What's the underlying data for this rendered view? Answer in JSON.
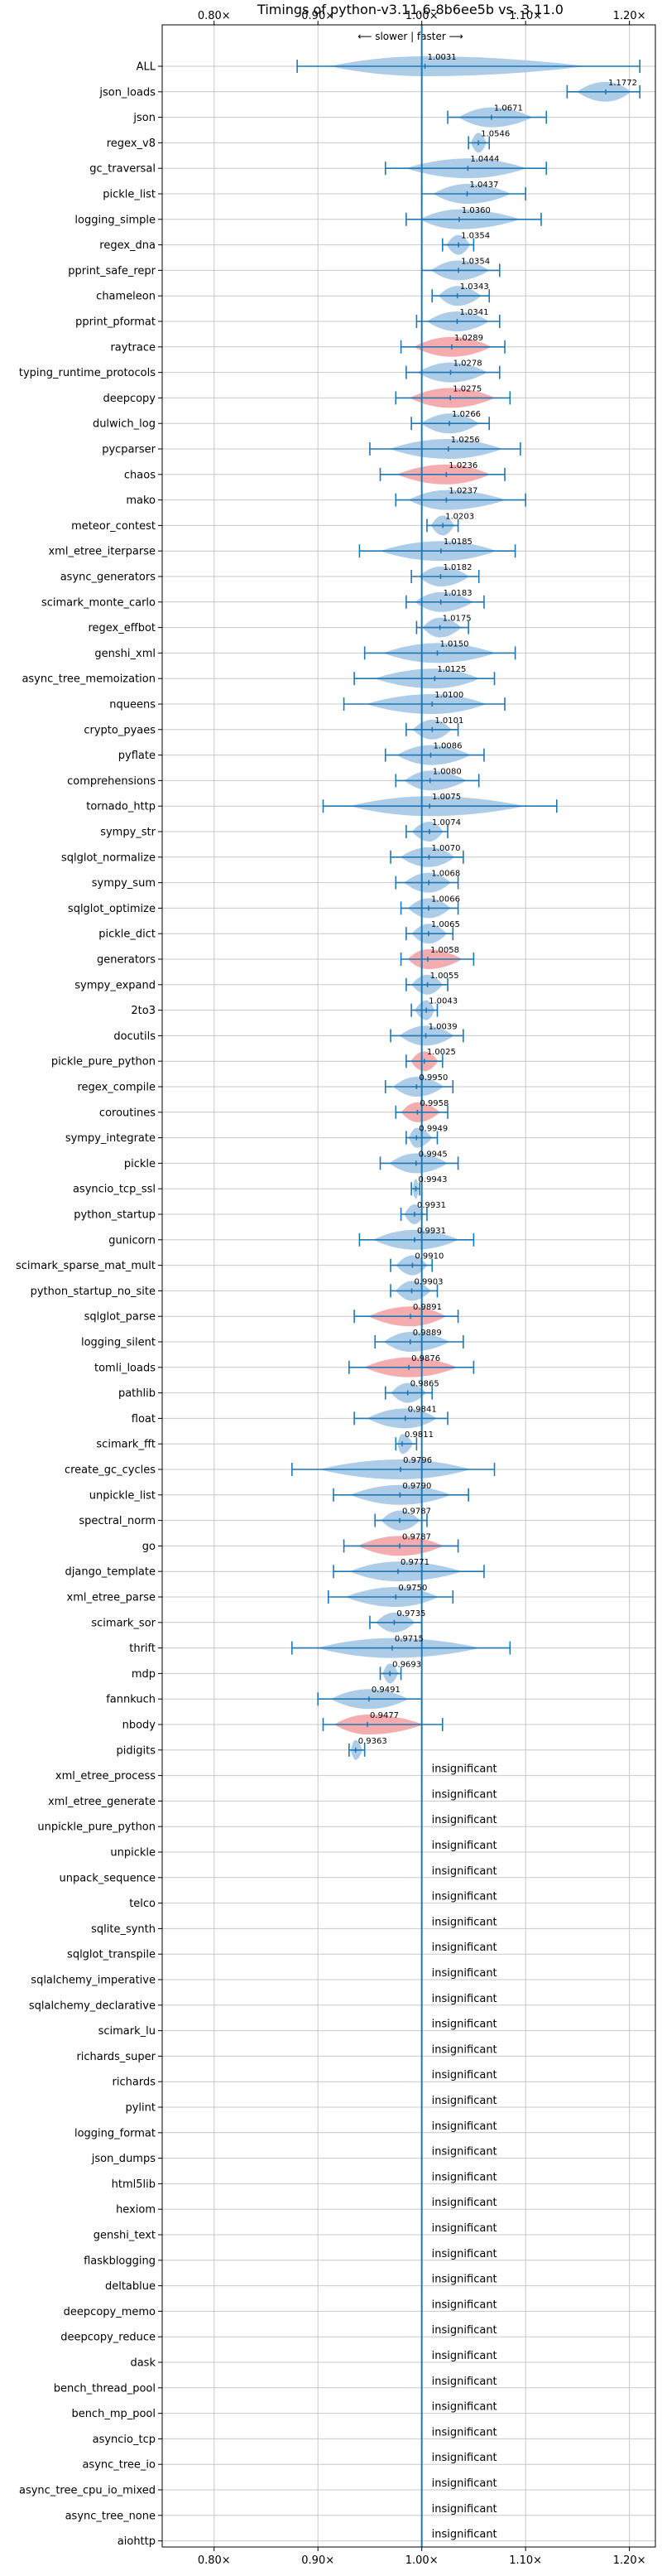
{
  "chart_data": {
    "type": "violin",
    "title": "Timings of python-v3.11.6-8b6ee5b vs. 3.11.0",
    "direction_label": "⟵ slower | faster ⟶",
    "xlim": [
      0.75,
      1.225
    ],
    "baseline": 1.0,
    "x_ticks": [
      0.8,
      0.9,
      1.0,
      1.1,
      1.2
    ],
    "x_tick_labels": [
      "0.80×",
      "0.90×",
      "1.00×",
      "1.10×",
      "1.20×"
    ],
    "grid": true,
    "colors": {
      "faster": "#a9c9e6",
      "slower": "#f4a8ab",
      "errorbar": "#1f77b4",
      "baseline": "#1f77b4",
      "grid": "#c8c8c8"
    },
    "insignificant_label": "insignificant",
    "benchmarks": [
      {
        "name": "ALL",
        "value": 1.0031,
        "low": 0.88,
        "high": 1.21,
        "color": "faster"
      },
      {
        "name": "json_loads",
        "value": 1.1772,
        "low": 1.14,
        "high": 1.21,
        "color": "faster"
      },
      {
        "name": "json",
        "value": 1.0671,
        "low": 1.025,
        "high": 1.12,
        "color": "faster"
      },
      {
        "name": "regex_v8",
        "value": 1.0546,
        "low": 1.045,
        "high": 1.065,
        "color": "faster"
      },
      {
        "name": "gc_traversal",
        "value": 1.0444,
        "low": 0.965,
        "high": 1.12,
        "color": "faster"
      },
      {
        "name": "pickle_list",
        "value": 1.0437,
        "low": 1.0,
        "high": 1.1,
        "color": "faster"
      },
      {
        "name": "logging_simple",
        "value": 1.036,
        "low": 0.985,
        "high": 1.115,
        "color": "faster"
      },
      {
        "name": "regex_dna",
        "value": 1.0354,
        "low": 1.02,
        "high": 1.05,
        "color": "faster"
      },
      {
        "name": "pprint_safe_repr",
        "value": 1.0354,
        "low": 1.0,
        "high": 1.075,
        "color": "faster"
      },
      {
        "name": "chameleon",
        "value": 1.0343,
        "low": 1.01,
        "high": 1.065,
        "color": "faster"
      },
      {
        "name": "pprint_pformat",
        "value": 1.0341,
        "low": 0.995,
        "high": 1.075,
        "color": "faster"
      },
      {
        "name": "raytrace",
        "value": 1.0289,
        "low": 0.98,
        "high": 1.08,
        "color": "slower"
      },
      {
        "name": "typing_runtime_protocols",
        "value": 1.0278,
        "low": 0.985,
        "high": 1.075,
        "color": "faster"
      },
      {
        "name": "deepcopy",
        "value": 1.0275,
        "low": 0.975,
        "high": 1.085,
        "color": "slower"
      },
      {
        "name": "dulwich_log",
        "value": 1.0266,
        "low": 0.99,
        "high": 1.065,
        "color": "faster"
      },
      {
        "name": "pycparser",
        "value": 1.0256,
        "low": 0.95,
        "high": 1.095,
        "color": "faster"
      },
      {
        "name": "chaos",
        "value": 1.0236,
        "low": 0.96,
        "high": 1.08,
        "color": "slower"
      },
      {
        "name": "mako",
        "value": 1.0237,
        "low": 0.975,
        "high": 1.1,
        "color": "faster"
      },
      {
        "name": "meteor_contest",
        "value": 1.0203,
        "low": 1.005,
        "high": 1.035,
        "color": "faster"
      },
      {
        "name": "xml_etree_iterparse",
        "value": 1.0185,
        "low": 0.94,
        "high": 1.09,
        "color": "faster"
      },
      {
        "name": "async_generators",
        "value": 1.0182,
        "low": 0.99,
        "high": 1.055,
        "color": "faster"
      },
      {
        "name": "scimark_monte_carlo",
        "value": 1.0183,
        "low": 0.985,
        "high": 1.06,
        "color": "faster"
      },
      {
        "name": "regex_effbot",
        "value": 1.0175,
        "low": 0.995,
        "high": 1.045,
        "color": "faster"
      },
      {
        "name": "genshi_xml",
        "value": 1.015,
        "low": 0.945,
        "high": 1.09,
        "color": "faster"
      },
      {
        "name": "async_tree_memoization",
        "value": 1.0125,
        "low": 0.935,
        "high": 1.07,
        "color": "faster"
      },
      {
        "name": "nqueens",
        "value": 1.01,
        "low": 0.925,
        "high": 1.08,
        "color": "faster"
      },
      {
        "name": "crypto_pyaes",
        "value": 1.0101,
        "low": 0.985,
        "high": 1.035,
        "color": "faster"
      },
      {
        "name": "pyflate",
        "value": 1.0086,
        "low": 0.965,
        "high": 1.06,
        "color": "faster"
      },
      {
        "name": "comprehensions",
        "value": 1.008,
        "low": 0.975,
        "high": 1.055,
        "color": "faster"
      },
      {
        "name": "tornado_http",
        "value": 1.0075,
        "low": 0.905,
        "high": 1.13,
        "color": "faster"
      },
      {
        "name": "sympy_str",
        "value": 1.0074,
        "low": 0.985,
        "high": 1.025,
        "color": "faster"
      },
      {
        "name": "sqlglot_normalize",
        "value": 1.007,
        "low": 0.97,
        "high": 1.04,
        "color": "faster"
      },
      {
        "name": "sympy_sum",
        "value": 1.0068,
        "low": 0.975,
        "high": 1.035,
        "color": "faster"
      },
      {
        "name": "sqlglot_optimize",
        "value": 1.0066,
        "low": 0.98,
        "high": 1.035,
        "color": "faster"
      },
      {
        "name": "pickle_dict",
        "value": 1.0065,
        "low": 0.985,
        "high": 1.03,
        "color": "faster"
      },
      {
        "name": "generators",
        "value": 1.0058,
        "low": 0.98,
        "high": 1.05,
        "color": "slower"
      },
      {
        "name": "sympy_expand",
        "value": 1.0055,
        "low": 0.985,
        "high": 1.025,
        "color": "faster"
      },
      {
        "name": "2to3",
        "value": 1.0043,
        "low": 0.99,
        "high": 1.015,
        "color": "faster"
      },
      {
        "name": "docutils",
        "value": 1.0039,
        "low": 0.97,
        "high": 1.04,
        "color": "faster"
      },
      {
        "name": "pickle_pure_python",
        "value": 1.0025,
        "low": 0.985,
        "high": 1.02,
        "color": "slower"
      },
      {
        "name": "regex_compile",
        "value": 0.995,
        "low": 0.965,
        "high": 1.03,
        "color": "faster"
      },
      {
        "name": "coroutines",
        "value": 0.9958,
        "low": 0.975,
        "high": 1.025,
        "color": "slower"
      },
      {
        "name": "sympy_integrate",
        "value": 0.9949,
        "low": 0.985,
        "high": 1.015,
        "color": "faster"
      },
      {
        "name": "pickle",
        "value": 0.9945,
        "low": 0.96,
        "high": 1.035,
        "color": "faster"
      },
      {
        "name": "asyncio_tcp_ssl",
        "value": 0.9943,
        "low": 0.99,
        "high": 0.998,
        "color": "faster"
      },
      {
        "name": "python_startup",
        "value": 0.9931,
        "low": 0.98,
        "high": 1.005,
        "color": "faster"
      },
      {
        "name": "gunicorn",
        "value": 0.9931,
        "low": 0.94,
        "high": 1.05,
        "color": "faster"
      },
      {
        "name": "scimark_sparse_mat_mult",
        "value": 0.991,
        "low": 0.97,
        "high": 1.01,
        "color": "faster"
      },
      {
        "name": "python_startup_no_site",
        "value": 0.9903,
        "low": 0.97,
        "high": 1.015,
        "color": "faster"
      },
      {
        "name": "sqlglot_parse",
        "value": 0.9891,
        "low": 0.935,
        "high": 1.035,
        "color": "slower"
      },
      {
        "name": "logging_silent",
        "value": 0.9889,
        "low": 0.955,
        "high": 1.04,
        "color": "faster"
      },
      {
        "name": "tomli_loads",
        "value": 0.9876,
        "low": 0.93,
        "high": 1.05,
        "color": "slower"
      },
      {
        "name": "pathlib",
        "value": 0.9865,
        "low": 0.965,
        "high": 1.01,
        "color": "faster"
      },
      {
        "name": "float",
        "value": 0.9841,
        "low": 0.935,
        "high": 1.025,
        "color": "faster"
      },
      {
        "name": "scimark_fft",
        "value": 0.9811,
        "low": 0.975,
        "high": 0.995,
        "color": "faster"
      },
      {
        "name": "create_gc_cycles",
        "value": 0.9796,
        "low": 0.875,
        "high": 1.07,
        "color": "faster"
      },
      {
        "name": "unpickle_list",
        "value": 0.979,
        "low": 0.915,
        "high": 1.045,
        "color": "faster"
      },
      {
        "name": "spectral_norm",
        "value": 0.9787,
        "low": 0.955,
        "high": 1.005,
        "color": "faster"
      },
      {
        "name": "go",
        "value": 0.9787,
        "low": 0.925,
        "high": 1.035,
        "color": "slower"
      },
      {
        "name": "django_template",
        "value": 0.9771,
        "low": 0.915,
        "high": 1.06,
        "color": "faster"
      },
      {
        "name": "xml_etree_parse",
        "value": 0.975,
        "low": 0.91,
        "high": 1.03,
        "color": "faster"
      },
      {
        "name": "scimark_sor",
        "value": 0.9735,
        "low": 0.95,
        "high": 1.0,
        "color": "faster"
      },
      {
        "name": "thrift",
        "value": 0.9715,
        "low": 0.875,
        "high": 1.085,
        "color": "faster"
      },
      {
        "name": "mdp",
        "value": 0.9693,
        "low": 0.96,
        "high": 0.98,
        "color": "faster"
      },
      {
        "name": "fannkuch",
        "value": 0.9491,
        "low": 0.9,
        "high": 1.0,
        "color": "faster"
      },
      {
        "name": "nbody",
        "value": 0.9477,
        "low": 0.905,
        "high": 1.02,
        "color": "slower"
      },
      {
        "name": "pidigits",
        "value": 0.9363,
        "low": 0.93,
        "high": 0.945,
        "color": "faster"
      },
      {
        "name": "xml_etree_process",
        "insignificant": true
      },
      {
        "name": "xml_etree_generate",
        "insignificant": true
      },
      {
        "name": "unpickle_pure_python",
        "insignificant": true
      },
      {
        "name": "unpickle",
        "insignificant": true
      },
      {
        "name": "unpack_sequence",
        "insignificant": true
      },
      {
        "name": "telco",
        "insignificant": true
      },
      {
        "name": "sqlite_synth",
        "insignificant": true
      },
      {
        "name": "sqlglot_transpile",
        "insignificant": true
      },
      {
        "name": "sqlalchemy_imperative",
        "insignificant": true
      },
      {
        "name": "sqlalchemy_declarative",
        "insignificant": true
      },
      {
        "name": "scimark_lu",
        "insignificant": true
      },
      {
        "name": "richards_super",
        "insignificant": true
      },
      {
        "name": "richards",
        "insignificant": true
      },
      {
        "name": "pylint",
        "insignificant": true
      },
      {
        "name": "logging_format",
        "insignificant": true
      },
      {
        "name": "json_dumps",
        "insignificant": true
      },
      {
        "name": "html5lib",
        "insignificant": true
      },
      {
        "name": "hexiom",
        "insignificant": true
      },
      {
        "name": "genshi_text",
        "insignificant": true
      },
      {
        "name": "flaskblogging",
        "insignificant": true
      },
      {
        "name": "deltablue",
        "insignificant": true
      },
      {
        "name": "deepcopy_memo",
        "insignificant": true
      },
      {
        "name": "deepcopy_reduce",
        "insignificant": true
      },
      {
        "name": "dask",
        "insignificant": true
      },
      {
        "name": "bench_thread_pool",
        "insignificant": true
      },
      {
        "name": "bench_mp_pool",
        "insignificant": true
      },
      {
        "name": "asyncio_tcp",
        "insignificant": true
      },
      {
        "name": "async_tree_io",
        "insignificant": true
      },
      {
        "name": "async_tree_cpu_io_mixed",
        "insignificant": true
      },
      {
        "name": "async_tree_none",
        "insignificant": true
      },
      {
        "name": "aiohttp",
        "insignificant": true
      }
    ]
  }
}
